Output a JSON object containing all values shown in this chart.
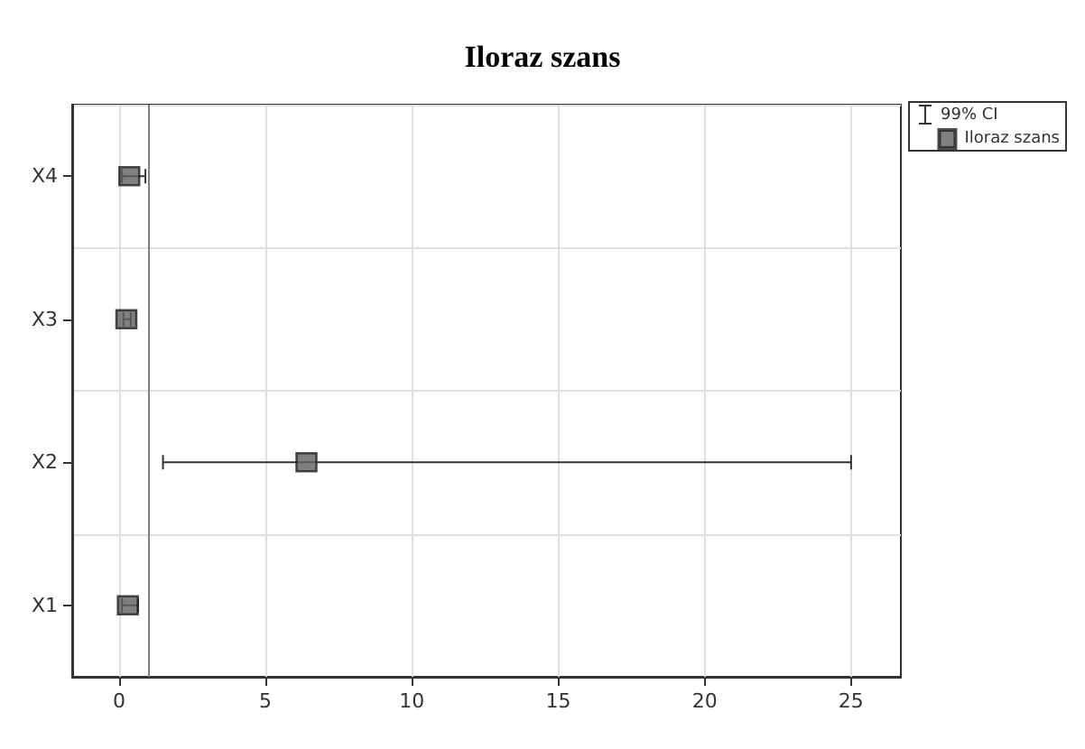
{
  "chart_data": {
    "type": "scatter",
    "title": "Iloraz szans",
    "orientation": "horizontal",
    "categories": [
      "X4",
      "X3",
      "X2",
      "X1"
    ],
    "series": [
      {
        "name": "Iloraz szans",
        "color": "#606060",
        "values": [
          0.35,
          0.25,
          6.4,
          0.3
        ],
        "errors": [
          [
            0.1,
            0.9
          ],
          [
            0.15,
            0.4
          ],
          [
            1.5,
            25
          ],
          [
            0.1,
            0.65
          ]
        ]
      }
    ],
    "annotations": [
      "99% CI"
    ],
    "xlim": [
      -1.6,
      26.7
    ],
    "xticks": [
      0,
      5,
      10,
      15,
      20,
      25
    ],
    "ref_lines": [
      {
        "axis": "x",
        "value": 1,
        "color": "#808080"
      }
    ],
    "grid": true,
    "legend": "top right",
    "marker": "square"
  }
}
